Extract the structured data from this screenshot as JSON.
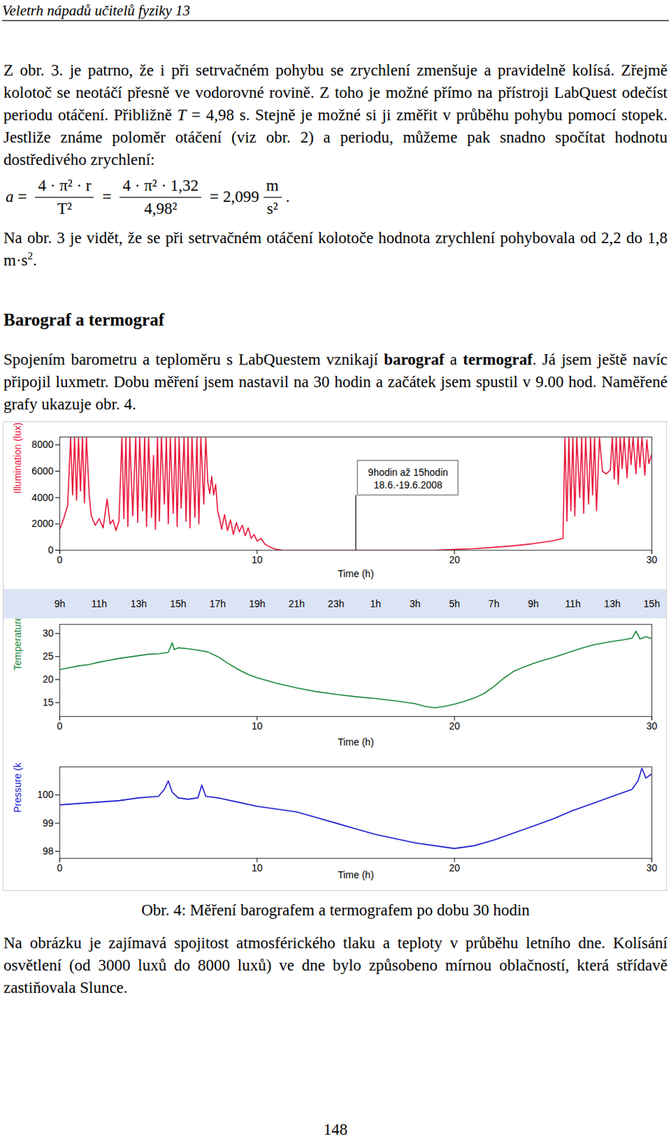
{
  "header": "Veletrh nápadů učitelů fyziky 13",
  "paragraph_1": [
    {
      "text": "Z obr. 3. je patrno, že i při setrvačném pohybu se zrychlení zmenšuje a pravidelně kolísá. Zřejmě kolotoč se neotáčí přesně ve vodorovné rovině. Z toho je možné přímo na přístroji LabQuest odečíst periodu otáčení. Přibližně "
    },
    {
      "text": "T",
      "italic": true
    },
    {
      "text": " = 4,98 s. Stejně je možné si ji změřit v průběhu pohybu pomocí stopek. Jestliže známe poloměr otáčení (viz obr. 2) a periodu, můžeme pak snadno spočítat hodnotu dostředivého zrychlení:"
    }
  ],
  "formula": {
    "lhs": "a",
    "sign": "=",
    "fractions": [
      {
        "num": "4 · π² · r",
        "den": "T²"
      },
      {
        "num": "4 · π² · 1,32",
        "den": "4,98²"
      }
    ],
    "result": "2,099",
    "unit": {
      "num": "m",
      "den": "s²"
    },
    "end": "."
  },
  "paragraph_2": [
    {
      "text": "Na obr. 3 je vidět, že se při setrvačném otáčení kolotoče hodnota zrychlení pohybovala od 2,2 do 1,8 m·s"
    },
    {
      "text": "2",
      "sup": true
    },
    {
      "text": "."
    }
  ],
  "section_title": "Barograf a termograf",
  "paragraph_3": [
    {
      "text": "Spojením barometru a teploměru s LabQuestem vznikají "
    },
    {
      "text": "barograf",
      "bold": true
    },
    {
      "text": " a "
    },
    {
      "text": "termograf",
      "bold": true
    },
    {
      "text": ". Já jsem ještě navíc připojil luxmetr. Dobu měření jsem nastavil na 30 hodin a začátek jsem spustil v 9.00 hod. Naměřené grafy ukazuje obr. 4."
    }
  ],
  "chart_data": [
    {
      "type": "line",
      "color": "#e8183c",
      "xlabel": "Time (h)",
      "ylabel": "Illumination (lux)",
      "xlim": [
        0,
        30
      ],
      "xticks": [
        0,
        10,
        20,
        30
      ],
      "ylim": [
        0,
        8600
      ],
      "yticks": [
        0,
        2000,
        4000,
        6000,
        8000
      ],
      "x": [
        0,
        0.2,
        0.4,
        0.55,
        0.65,
        0.75,
        0.85,
        0.95,
        1.05,
        1.15,
        1.25,
        1.35,
        1.5,
        1.6,
        1.8,
        2.0,
        2.2,
        2.4,
        2.55,
        2.7,
        2.85,
        3.0,
        3.15,
        3.25,
        3.35,
        3.45,
        3.55,
        3.7,
        3.85,
        3.95,
        4.05,
        4.2,
        4.3,
        4.4,
        4.5,
        4.65,
        4.75,
        4.85,
        4.95,
        5.05,
        5.15,
        5.3,
        5.4,
        5.5,
        5.6,
        5.75,
        5.85,
        5.95,
        6.05,
        6.15,
        6.3,
        6.4,
        6.5,
        6.6,
        6.7,
        6.85,
        6.95,
        7.05,
        7.15,
        7.3,
        7.4,
        7.5,
        7.6,
        7.7,
        7.8,
        7.9,
        8.0,
        8.1,
        8.2,
        8.35,
        8.5,
        8.65,
        8.8,
        8.95,
        9.1,
        9.25,
        9.4,
        9.55,
        9.7,
        9.85,
        10.0,
        10.2,
        10.4,
        10.6,
        10.8,
        11.0,
        11.3,
        19.0,
        20.0,
        21.0,
        22.0,
        23.0,
        24.0,
        25.0,
        25.5,
        25.6,
        25.7,
        25.8,
        25.9,
        26.0,
        26.1,
        26.2,
        26.35,
        26.45,
        26.55,
        26.65,
        26.8,
        26.9,
        27.0,
        27.1,
        27.2,
        27.35,
        27.5,
        27.7,
        27.9,
        28.0,
        28.1,
        28.2,
        28.3,
        28.4,
        28.5,
        28.6,
        28.75,
        28.85,
        28.95,
        29.05,
        29.2,
        29.3,
        29.4,
        29.5,
        29.65,
        29.75,
        29.85,
        30.0
      ],
      "values": [
        1600,
        2400,
        3400,
        8600,
        4200,
        8600,
        3800,
        8600,
        4500,
        8600,
        3600,
        8600,
        4000,
        2600,
        1900,
        2400,
        1700,
        3900,
        2000,
        2300,
        1500,
        2200,
        8600,
        2400,
        8600,
        1800,
        8600,
        2600,
        8600,
        2100,
        8600,
        3000,
        8600,
        1800,
        8600,
        2500,
        7200,
        1600,
        8600,
        2200,
        8600,
        3500,
        8600,
        2000,
        8600,
        2800,
        8600,
        1800,
        8600,
        3200,
        8600,
        2200,
        8600,
        1700,
        8600,
        2500,
        8600,
        2000,
        8600,
        3500,
        8600,
        5200,
        4300,
        5600,
        4200,
        5000,
        3000,
        2400,
        1600,
        2700,
        1500,
        2300,
        1200,
        2100,
        1400,
        1900,
        1100,
        1700,
        900,
        1200,
        700,
        900,
        450,
        300,
        150,
        60,
        0,
        0,
        60,
        120,
        220,
        340,
        500,
        720,
        900,
        8600,
        2200,
        8600,
        3000,
        8600,
        2600,
        8600,
        4000,
        8600,
        2800,
        8600,
        3500,
        8600,
        4200,
        8600,
        3000,
        8600,
        6000,
        5800,
        6100,
        8600,
        5400,
        8600,
        5000,
        8600,
        6200,
        8600,
        5500,
        8600,
        6500,
        8600,
        5800,
        8600,
        6300,
        8600,
        5700,
        8400,
        6600,
        7300
      ],
      "annotation": {
        "lines": [
          "9hodin až 15hodin",
          "18.6.-19.6.2008"
        ],
        "x": 15,
        "box": {
          "x1": 15.1,
          "x2": 20.2,
          "y1": 4170,
          "y2": 6800
        }
      }
    },
    {
      "type": "line",
      "color": "#1f8a3c",
      "xlabel": "Time (h)",
      "ylabel": "Temperature (°C)",
      "xlim": [
        0,
        30
      ],
      "xticks": [
        0,
        10,
        20,
        30
      ],
      "ylim": [
        12,
        32
      ],
      "yticks": [
        15,
        20,
        25,
        30
      ],
      "x": [
        0,
        0.5,
        1,
        1.5,
        2,
        2.5,
        3,
        3.5,
        4,
        4.5,
        5,
        5.5,
        5.7,
        5.8,
        6,
        6.5,
        7,
        7.5,
        8,
        8.5,
        9,
        9.5,
        10,
        10.5,
        11,
        12,
        13,
        14,
        15,
        16,
        17,
        18,
        18.5,
        19,
        19.5,
        20,
        20.5,
        21,
        21.5,
        22,
        22.5,
        23,
        23.5,
        24,
        24.5,
        25,
        25.5,
        26,
        26.5,
        27,
        27.5,
        28,
        28.5,
        29,
        29.2,
        29.4,
        29.7,
        30
      ],
      "values": [
        22.2,
        22.6,
        23.0,
        23.3,
        23.8,
        24.2,
        24.6,
        24.9,
        25.2,
        25.5,
        25.6,
        25.9,
        28.0,
        26.5,
        26.9,
        26.7,
        26.4,
        26.0,
        25.0,
        23.6,
        22.3,
        21.2,
        20.4,
        19.8,
        19.2,
        18.2,
        17.4,
        16.8,
        16.3,
        15.9,
        15.4,
        14.8,
        14.2,
        13.9,
        14.2,
        14.7,
        15.3,
        16.0,
        17.0,
        18.5,
        20.3,
        21.8,
        22.7,
        23.5,
        24.2,
        24.8,
        25.5,
        26.2,
        26.9,
        27.5,
        27.9,
        28.3,
        28.6,
        29.0,
        30.5,
        28.8,
        29.3,
        28.9
      ]
    },
    {
      "type": "line",
      "color": "#1a1ad0",
      "xlabel": "Time (h)",
      "ylabel": "Pressure (kPa)",
      "xlim": [
        0,
        30
      ],
      "xticks": [
        0,
        10,
        20,
        30
      ],
      "ylim": [
        97.75,
        101
      ],
      "yticks": [
        98,
        99,
        100
      ],
      "x": [
        0,
        1,
        2,
        3,
        4,
        5,
        5.3,
        5.5,
        5.7,
        6,
        6.5,
        7,
        7.2,
        7.4,
        8,
        9,
        10,
        11,
        12,
        13,
        14,
        15,
        16,
        17,
        18,
        19,
        20,
        21,
        22,
        23,
        24,
        25,
        26,
        27,
        28,
        29,
        29.3,
        29.5,
        29.7,
        30
      ],
      "values": [
        99.65,
        99.7,
        99.75,
        99.8,
        99.9,
        99.95,
        100.2,
        100.5,
        100.1,
        99.9,
        99.85,
        99.9,
        100.35,
        99.95,
        99.9,
        99.75,
        99.6,
        99.5,
        99.4,
        99.2,
        99.0,
        98.8,
        98.6,
        98.45,
        98.3,
        98.2,
        98.1,
        98.2,
        98.4,
        98.65,
        98.9,
        99.15,
        99.45,
        99.7,
        99.95,
        100.2,
        100.5,
        100.95,
        100.6,
        100.75
      ]
    }
  ],
  "time_strip": {
    "xlim": [
      0,
      30
    ],
    "ticks": [
      {
        "value": 0,
        "label": "9h"
      },
      {
        "value": 2,
        "label": "11h"
      },
      {
        "value": 4,
        "label": "13h"
      },
      {
        "value": 6,
        "label": "15h"
      },
      {
        "value": 8,
        "label": "17h"
      },
      {
        "value": 10,
        "label": "19h"
      },
      {
        "value": 12,
        "label": "21h"
      },
      {
        "value": 14,
        "label": "23h"
      },
      {
        "value": 16,
        "label": "1h"
      },
      {
        "value": 18,
        "label": "3h"
      },
      {
        "value": 20,
        "label": "5h"
      },
      {
        "value": 22,
        "label": "7h"
      },
      {
        "value": 24,
        "label": "9h"
      },
      {
        "value": 26,
        "label": "11h"
      },
      {
        "value": 28,
        "label": "13h"
      },
      {
        "value": 30,
        "label": "15h"
      }
    ]
  },
  "caption": "Obr. 4: Měření barografem a termografem po dobu 30 hodin",
  "paragraph_4": [
    {
      "text": "Na obrázku je zajímavá spojitost atmosférického tlaku a teploty v průběhu letního dne. Kolísání osvětlení (od 3000 luxů do 8000 luxů) ve dne bylo způsobeno mírnou oblačností, která střídavě zastiňovala Slunce."
    }
  ],
  "page_number": "148"
}
